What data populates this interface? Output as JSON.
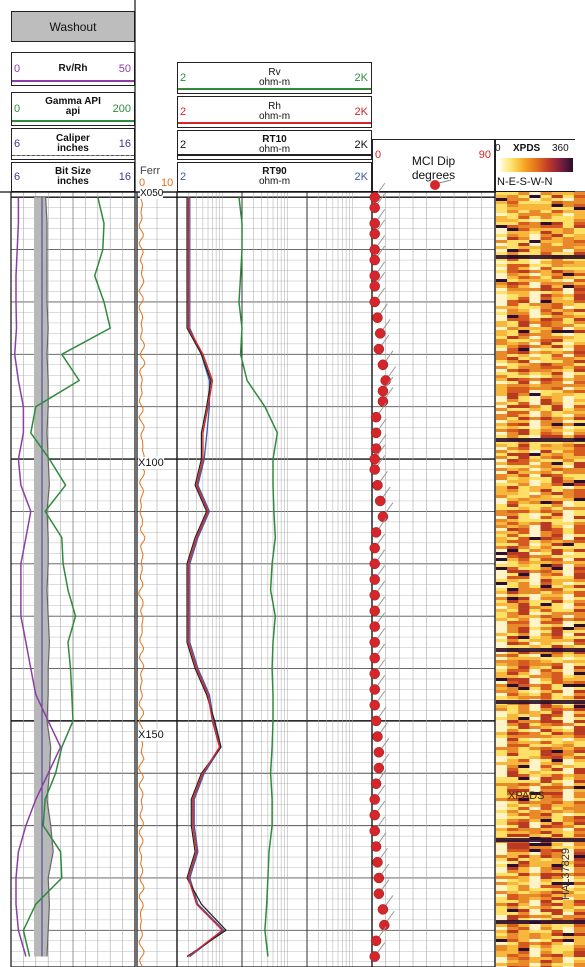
{
  "track1": {
    "washout": {
      "title": "Washout"
    },
    "rvrh": {
      "name": "Rv/Rh",
      "min": "0",
      "max": "50",
      "color": "#8b3fa6"
    },
    "gamma": {
      "name": "Gamma API",
      "unit": "api",
      "min": "0",
      "max": "200",
      "color": "#2e8b3c"
    },
    "caliper": {
      "name": "Caliper",
      "unit": "inches",
      "min": "6",
      "max": "16",
      "color": "#3b3b8f"
    },
    "bitsize": {
      "name": "Bit Size",
      "unit": "inches",
      "min": "6",
      "max": "16",
      "color": "#3b3b8f"
    }
  },
  "track2": {
    "name": "Ferr",
    "min": "0",
    "max": "10",
    "color": "#e2711d"
  },
  "track3": {
    "rv": {
      "name": "Rv",
      "unit": "ohm-m",
      "min": "2",
      "max": "2K",
      "color": "#2e8b3c"
    },
    "rh": {
      "name": "Rh",
      "unit": "ohm-m",
      "min": "2",
      "max": "2K",
      "color": "#d6262b"
    },
    "rt10": {
      "name": "RT10",
      "unit": "ohm-m",
      "min": "2",
      "max": "2K",
      "color": "#222222"
    },
    "rt90": {
      "name": "RT90",
      "unit": "ohm-m",
      "min": "2",
      "max": "2K",
      "color": "#3b5aa8"
    }
  },
  "track4": {
    "name": "MCI Dip",
    "unit": "degrees",
    "min": "0",
    "max": "90",
    "dot_color": "#d6262b"
  },
  "track5": {
    "name": "XPDS",
    "min": "0",
    "max": "360",
    "directions": "N-E-S-W-N",
    "label": "XPADS"
  },
  "depth_labels": [
    "X050",
    "X100",
    "X150"
  ],
  "figure_id": "HAL37829",
  "chart_data": {
    "type": "line",
    "depth_ticks": [
      "X050",
      "X100",
      "X150"
    ],
    "depth": [
      50,
      55,
      60,
      65,
      70,
      75,
      80,
      85,
      90,
      95,
      100,
      105,
      110,
      115,
      120,
      125,
      130,
      135,
      140,
      145,
      150,
      155,
      160,
      165,
      170,
      175,
      180,
      185,
      190,
      195
    ],
    "series": [
      {
        "name": "Gamma API",
        "values": [
          140,
          150,
          148,
          135,
          150,
          160,
          82,
          110,
          40,
          32,
          62,
          88,
          55,
          82,
          84,
          92,
          104,
          92,
          96,
          98,
          100,
          82,
          72,
          55,
          52,
          80,
          82,
          40,
          20,
          30
        ]
      },
      {
        "name": "Rv/Rh",
        "values": [
          3,
          3,
          2.5,
          2,
          2,
          2.2,
          1.5,
          3,
          5,
          5,
          3,
          4,
          8,
          6,
          4,
          4,
          4,
          6,
          8,
          10,
          15,
          20,
          15,
          10,
          6,
          3,
          2,
          2,
          3,
          6
        ]
      },
      {
        "name": "Caliper",
        "values": [
          8.8,
          8.9,
          8.9,
          8.9,
          8.9,
          9.0,
          8.9,
          9.0,
          9.0,
          8.9,
          9.0,
          9.1,
          8.9,
          9.0,
          9.0,
          8.9,
          9.0,
          9.1,
          9.0,
          9.0,
          8.9,
          9.2,
          9.1,
          8.9,
          9.2,
          9.4,
          9.0,
          9.1,
          9.0,
          8.9
        ]
      },
      {
        "name": "Bit Size",
        "values": [
          8.5,
          8.5,
          8.5,
          8.5,
          8.5,
          8.5,
          8.5,
          8.5,
          8.5,
          8.5,
          8.5,
          8.5,
          8.5,
          8.5,
          8.5,
          8.5,
          8.5,
          8.5,
          8.5,
          8.5,
          8.5,
          8.5,
          8.5,
          8.5,
          8.5,
          8.5,
          8.5,
          8.5,
          8.5,
          8.5
        ]
      },
      {
        "name": "Ferr",
        "values": [
          1.2,
          1.0,
          1.1,
          1.3,
          1.0,
          1.2,
          1.4,
          1.1,
          1.0,
          1.3,
          1.5,
          1.2,
          1.0,
          1.4,
          1.2,
          1.0,
          1.3,
          1.1,
          1.2,
          1.0,
          1.1,
          1.3,
          1.0,
          1.2,
          1.1,
          1.0,
          1.2,
          1.1,
          1.0,
          1.2
        ]
      },
      {
        "name": "Rv",
        "values": [
          18,
          20,
          20,
          19,
          18,
          20,
          19,
          24,
          45,
          70,
          60,
          60,
          62,
          65,
          58,
          55,
          65,
          60,
          58,
          60,
          60,
          58,
          55,
          58,
          58,
          52,
          50,
          48,
          45,
          50
        ]
      },
      {
        "name": "Rh",
        "values": [
          3,
          3,
          3,
          3,
          3,
          3,
          5,
          7,
          6,
          5,
          5,
          4,
          6,
          4,
          3,
          3,
          3,
          3,
          4,
          6,
          7,
          9,
          5,
          3.5,
          3.5,
          4,
          3,
          4,
          10,
          3
        ]
      },
      {
        "name": "RT10",
        "values": [
          3,
          3,
          3,
          3,
          3,
          3,
          5,
          7,
          6,
          5,
          5,
          4,
          6,
          4,
          3,
          3,
          3,
          3,
          4,
          6,
          8,
          10,
          5,
          3.5,
          3.5,
          4,
          3,
          5,
          12,
          3
        ]
      },
      {
        "name": "RT90",
        "values": [
          3,
          3,
          3,
          3,
          3,
          3,
          4.5,
          6,
          6,
          5.5,
          5,
          4,
          6,
          4,
          3,
          3,
          3,
          3,
          4,
          6,
          7,
          9,
          5,
          3.5,
          3.5,
          4,
          3,
          4,
          10,
          3
        ]
      }
    ],
    "dip": {
      "depth": [
        50,
        52,
        55,
        57,
        60,
        62,
        65,
        67,
        70,
        73,
        76,
        79,
        82,
        85,
        87,
        89,
        92,
        95,
        98,
        100,
        102,
        105,
        108,
        111,
        114,
        117,
        120,
        123,
        126,
        129,
        132,
        135,
        138,
        141,
        144,
        147,
        150,
        153,
        156,
        159,
        162,
        165,
        168,
        171,
        174,
        177,
        180,
        183,
        186,
        189,
        192,
        195
      ],
      "values": [
        2,
        2,
        2,
        2,
        2,
        2,
        2,
        2,
        2,
        4,
        6,
        5,
        8,
        10,
        8,
        8,
        3,
        3,
        3,
        2,
        2,
        4,
        6,
        8,
        3,
        2,
        2,
        2,
        2,
        2,
        2,
        2,
        2,
        2,
        2,
        2,
        3,
        4,
        5,
        5,
        3,
        2,
        2,
        2,
        3,
        4,
        5,
        5,
        8,
        9,
        3,
        2
      ]
    }
  }
}
